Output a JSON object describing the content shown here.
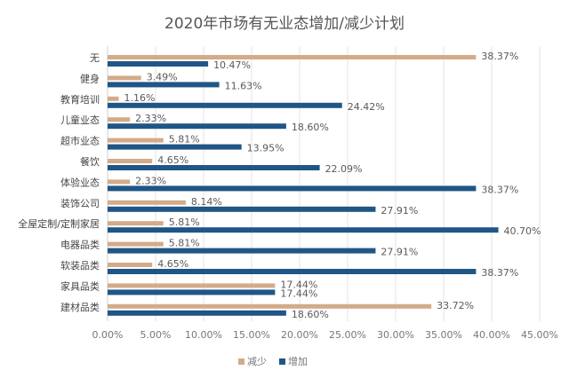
{
  "chart_data": {
    "type": "bar",
    "orientation": "horizontal",
    "title": "2020年市场有无业态增加/减少计划",
    "categories": [
      "无",
      "健身",
      "教育培训",
      "儿童业态",
      "超市业态",
      "餐饮",
      "体验业态",
      "装饰公司",
      "全屋定制/定制家居",
      "电器品类",
      "软装品类",
      "家具品类",
      "建材品类"
    ],
    "series": [
      {
        "name": "减少",
        "color": "#d3ab88",
        "values": [
          38.37,
          3.49,
          1.16,
          2.33,
          5.81,
          4.65,
          2.33,
          8.14,
          5.81,
          5.81,
          4.65,
          17.44,
          33.72
        ]
      },
      {
        "name": "增加",
        "color": "#1f5686",
        "values": [
          10.47,
          11.63,
          24.42,
          18.6,
          13.95,
          22.09,
          38.37,
          27.91,
          40.7,
          27.91,
          38.37,
          17.44,
          18.6
        ]
      }
    ],
    "xlim": [
      0,
      45
    ],
    "xticks": [
      "0.00%",
      "5.00%",
      "10.00%",
      "15.00%",
      "20.00%",
      "25.00%",
      "30.00%",
      "35.00%",
      "40.00%",
      "45.00%"
    ],
    "grid": true,
    "legend": "bottom"
  }
}
